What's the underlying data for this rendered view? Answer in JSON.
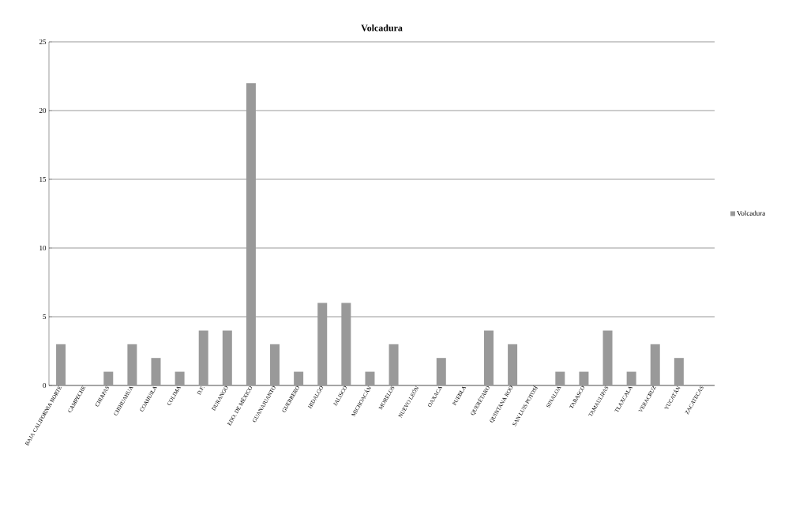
{
  "chart_data": {
    "type": "bar",
    "title": "Volcadura",
    "categories": [
      "BAJA CALIFORNIA NORTE",
      "CAMPECHE",
      "CHIAPAS",
      "CHIHUAHUA",
      "COAHUILA",
      "COLIMA",
      "D.F.",
      "DURANGO",
      "EDO. DE MÉXICO",
      "GUANAJUANTO",
      "GUERRERO",
      "HIDALGO",
      "JALISCO",
      "MICHOACÁN",
      "MORELOS",
      "NUEVO LEÓN",
      "OAXACA",
      "PUEBLA",
      "QUERÉTARO",
      "QUINTANA ROO",
      "SAN LUIS POTOSÍ",
      "SINALOA",
      "TABASCO",
      "TAMAULIPAS",
      "TLAXCALA",
      "VERACRUZ",
      "YUCATÁN",
      "ZACATECAS"
    ],
    "series": [
      {
        "name": "Volcadura",
        "color": "#999999",
        "values": [
          3,
          0,
          1,
          3,
          2,
          1,
          4,
          4,
          22,
          3,
          1,
          6,
          6,
          1,
          3,
          0,
          2,
          0,
          4,
          3,
          0,
          1,
          1,
          4,
          1,
          3,
          2,
          0
        ]
      }
    ],
    "ylim": [
      0,
      25
    ],
    "yticks": [
      0,
      5,
      10,
      15,
      20,
      25
    ],
    "grid": "y",
    "legend": "right"
  }
}
